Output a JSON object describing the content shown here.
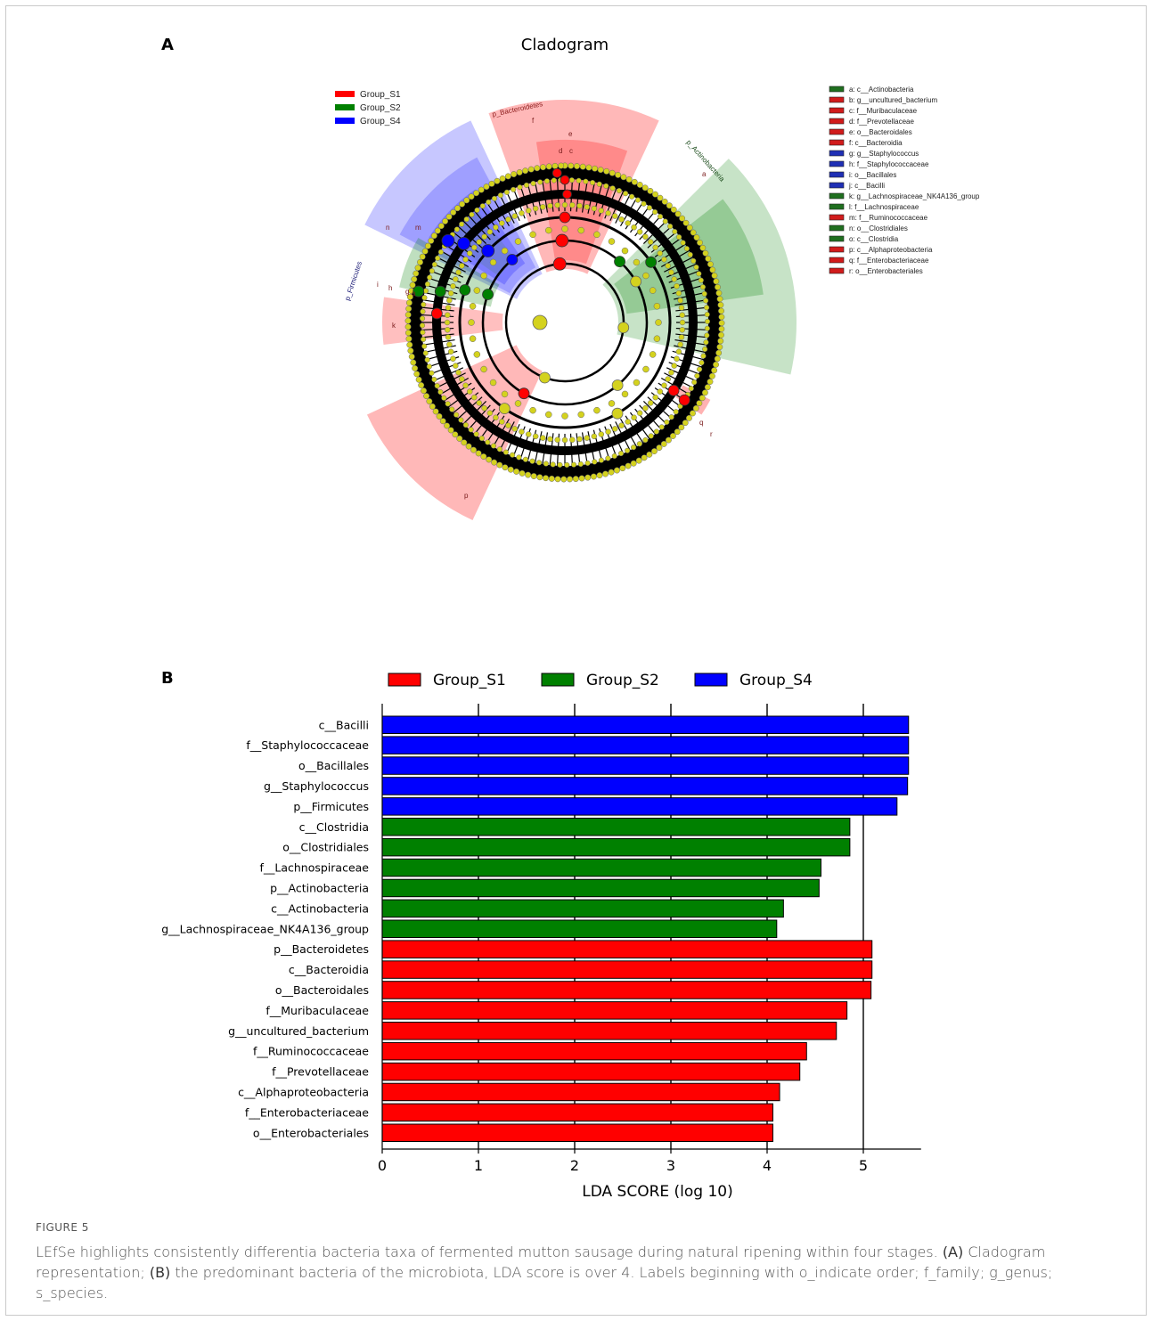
{
  "panel_a": {
    "letter": "A",
    "title": "Cladogram",
    "groups": [
      {
        "name": "Group_S1",
        "color": "#ff0000"
      },
      {
        "name": "Group_S2",
        "color": "#008000"
      },
      {
        "name": "Group_S4",
        "color": "#0000ff"
      }
    ],
    "sector_labels": [
      "p_Bacteroidetes",
      "p_Actinobacteria",
      "p_Firmicutes"
    ],
    "sector_letters": [
      "f",
      "d",
      "c",
      "e",
      "a",
      "i",
      "h",
      "g",
      "o",
      "n",
      "k",
      "m",
      "q",
      "r",
      "p"
    ],
    "key_entries": [
      {
        "text": "a: c__Actinobacteria",
        "color": "#1f6f1f"
      },
      {
        "text": "b: g__uncultured_bacterium",
        "color": "#d11b1b"
      },
      {
        "text": "c: f__Muribaculaceae",
        "color": "#d11b1b"
      },
      {
        "text": "d: f__Prevotellaceae",
        "color": "#d11b1b"
      },
      {
        "text": "e: o__Bacteroidales",
        "color": "#d11b1b"
      },
      {
        "text": "f: c__Bacteroidia",
        "color": "#d11b1b"
      },
      {
        "text": "g: g__Staphylococcus",
        "color": "#1f2fb5"
      },
      {
        "text": "h: f__Staphylococcaceae",
        "color": "#1f2fb5"
      },
      {
        "text": "i: o__Bacillales",
        "color": "#1f2fb5"
      },
      {
        "text": "j: c__Bacilli",
        "color": "#1f2fb5"
      },
      {
        "text": "k: g__Lachnospiraceae_NK4A136_group",
        "color": "#1f6f1f"
      },
      {
        "text": "l: f__Lachnospiraceae",
        "color": "#1f6f1f"
      },
      {
        "text": "m: f__Ruminococcaceae",
        "color": "#d11b1b"
      },
      {
        "text": "n: o__Clostridiales",
        "color": "#1f6f1f"
      },
      {
        "text": "o: c__Clostridia",
        "color": "#1f6f1f"
      },
      {
        "text": "p: c__Alphaproteobacteria",
        "color": "#d11b1b"
      },
      {
        "text": "q: f__Enterobacteriaceae",
        "color": "#d11b1b"
      },
      {
        "text": "r: o__Enterobacteriales",
        "color": "#d11b1b"
      }
    ]
  },
  "panel_b": {
    "letter": "B"
  },
  "chart_data": {
    "type": "bar",
    "orientation": "horizontal",
    "xlabel": "LDA SCORE (log 10)",
    "xlim": [
      0,
      5.6
    ],
    "xticks": [
      0,
      1,
      2,
      3,
      4,
      5
    ],
    "grid": "vertical",
    "legend_position": "top",
    "legend": [
      {
        "name": "Group_S1",
        "color": "#ff0000"
      },
      {
        "name": "Group_S2",
        "color": "#008000"
      },
      {
        "name": "Group_S4",
        "color": "#0000ff"
      }
    ],
    "bars": [
      {
        "label": "c__Bacilli",
        "value": 5.47,
        "group": "Group_S4"
      },
      {
        "label": "f__Staphylococcaceae",
        "value": 5.47,
        "group": "Group_S4"
      },
      {
        "label": "o__Bacillales",
        "value": 5.47,
        "group": "Group_S4"
      },
      {
        "label": "g__Staphylococcus",
        "value": 5.46,
        "group": "Group_S4"
      },
      {
        "label": "p__Firmicutes",
        "value": 5.35,
        "group": "Group_S4"
      },
      {
        "label": "c__Clostridia",
        "value": 4.86,
        "group": "Group_S2"
      },
      {
        "label": "o__Clostridiales",
        "value": 4.86,
        "group": "Group_S2"
      },
      {
        "label": "f__Lachnospiraceae",
        "value": 4.56,
        "group": "Group_S2"
      },
      {
        "label": "p__Actinobacteria",
        "value": 4.54,
        "group": "Group_S2"
      },
      {
        "label": "c__Actinobacteria",
        "value": 4.17,
        "group": "Group_S2"
      },
      {
        "label": "g__Lachnospiraceae_NK4A136_group",
        "value": 4.1,
        "group": "Group_S2"
      },
      {
        "label": "p__Bacteroidetes",
        "value": 5.09,
        "group": "Group_S1"
      },
      {
        "label": "c__Bacteroidia",
        "value": 5.09,
        "group": "Group_S1"
      },
      {
        "label": "o__Bacteroidales",
        "value": 5.08,
        "group": "Group_S1"
      },
      {
        "label": "f__Muribaculaceae",
        "value": 4.83,
        "group": "Group_S1"
      },
      {
        "label": "g__uncultured_bacterium",
        "value": 4.72,
        "group": "Group_S1"
      },
      {
        "label": "f__Ruminococcaceae",
        "value": 4.41,
        "group": "Group_S1"
      },
      {
        "label": "f__Prevotellaceae",
        "value": 4.34,
        "group": "Group_S1"
      },
      {
        "label": "c__Alphaproteobacteria",
        "value": 4.13,
        "group": "Group_S1"
      },
      {
        "label": "f__Enterobacteriaceae",
        "value": 4.06,
        "group": "Group_S1"
      },
      {
        "label": "o__Enterobacteriales",
        "value": 4.06,
        "group": "Group_S1"
      }
    ]
  },
  "caption": {
    "label": "FIGURE 5",
    "text_1": "LEfSe highlights consistently differentia bacteria taxa of fermented mutton sausage during natural ripening within four stages. ",
    "bold_a": "(A)",
    "text_2": " Cladogram representation; ",
    "bold_b": "(B)",
    "text_3": " the predominant bacteria of the microbiota, LDA score is over 4. Labels beginning with o_indicate order; f_family; g_genus; s_species."
  }
}
